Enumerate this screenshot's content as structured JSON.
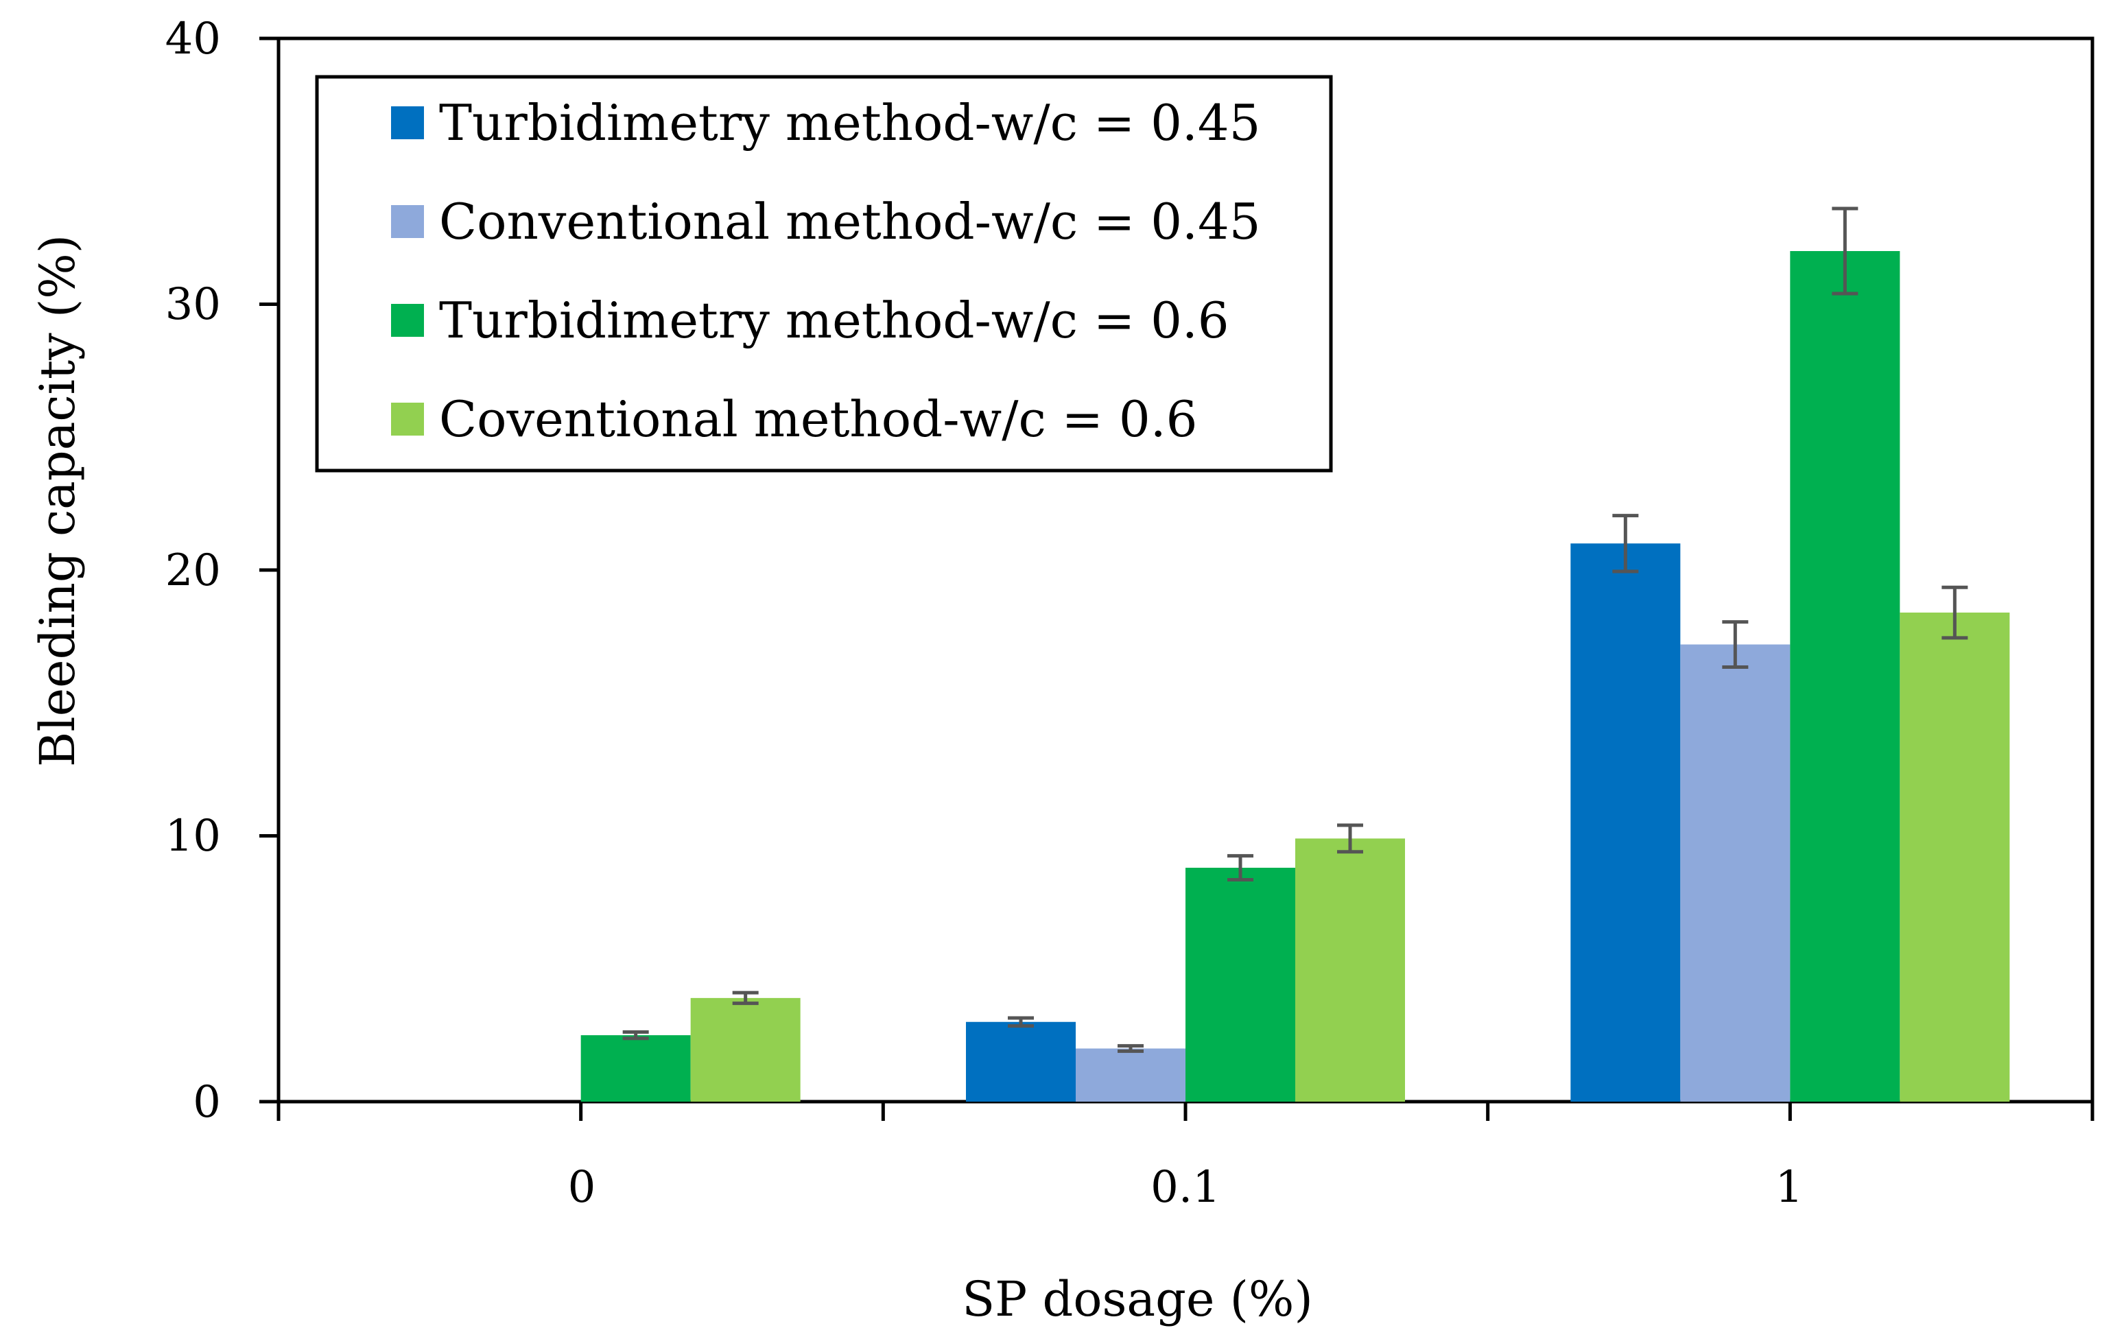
{
  "chart_data": {
    "type": "bar",
    "title": "",
    "xlabel": "SP dosage (%)",
    "ylabel": "Bleeding capacity (%)",
    "categories": [
      "0",
      "0.1",
      "1"
    ],
    "ylim": [
      0,
      40
    ],
    "yticks": [
      "0",
      "10",
      "20",
      "30",
      "40"
    ],
    "legend_position": "top-left (inside plot)",
    "grid": false,
    "series": [
      {
        "name": "Turbidimetry method-w/c = 0.45",
        "color": "#0070C0",
        "values": [
          0,
          3.0,
          21.0
        ],
        "errors": [
          0,
          0.15,
          1.05
        ]
      },
      {
        "name": "Conventional method-w/c = 0.45",
        "color": "#8EA9DB",
        "values": [
          0,
          2.0,
          17.2
        ],
        "errors": [
          0,
          0.1,
          0.85
        ]
      },
      {
        "name": "Turbidimetry method-w/c = 0.6",
        "color": "#00B050",
        "values": [
          2.5,
          8.8,
          32.0
        ],
        "errors": [
          0.12,
          0.45,
          1.6
        ]
      },
      {
        "name": "Coventional method-w/c = 0.6",
        "color": "#92D050",
        "values": [
          3.9,
          9.9,
          18.4
        ],
        "errors": [
          0.2,
          0.5,
          0.95
        ]
      }
    ]
  }
}
